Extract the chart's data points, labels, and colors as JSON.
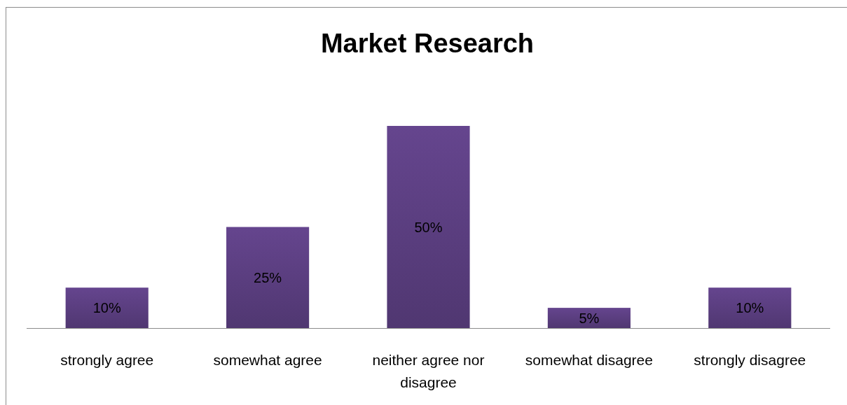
{
  "chart_data": {
    "type": "bar",
    "title": "Market Research",
    "categories": [
      "strongly agree",
      "somewhat agree",
      "neither agree nor disagree",
      "somewhat disagree",
      "strongly disagree"
    ],
    "values": [
      10,
      25,
      50,
      5,
      10
    ],
    "value_labels": [
      "10%",
      "25%",
      "50%",
      "5%",
      "10%"
    ],
    "color": "#5b3e80"
  }
}
